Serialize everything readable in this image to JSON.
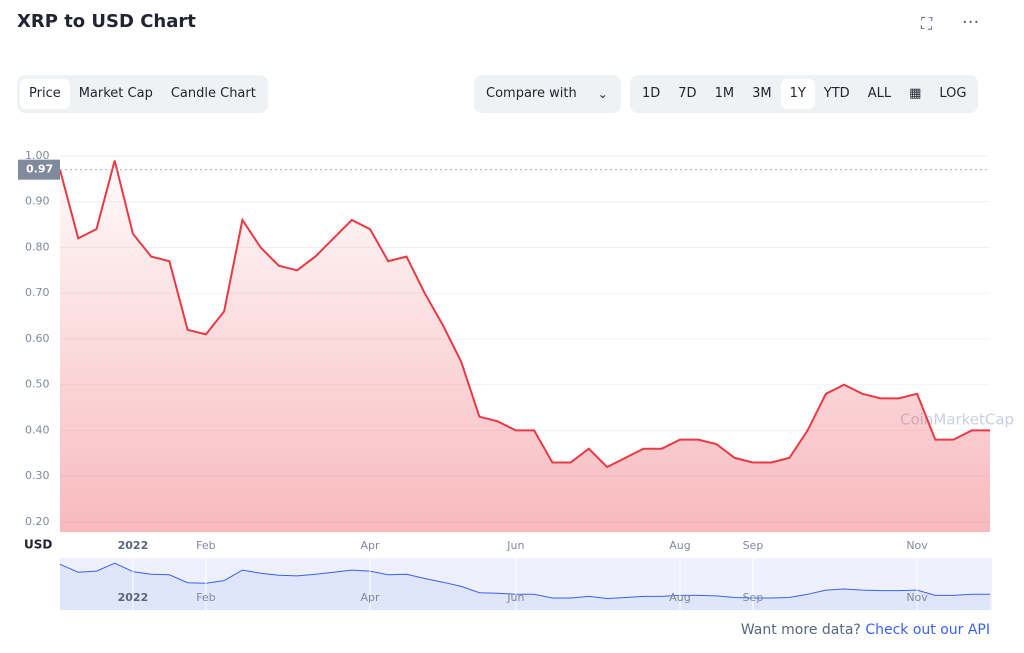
{
  "header": {
    "title": "XRP to USD Chart"
  },
  "tabs": [
    "Price",
    "Market Cap",
    "Candle Chart"
  ],
  "compare": "Compare with",
  "ranges": [
    "1D",
    "7D",
    "1M",
    "3M",
    "1Y",
    "YTD",
    "ALL"
  ],
  "log": "LOG",
  "watermark": "CoinMarketCap",
  "footer": {
    "text": "Want more data?",
    "link": "Check out our API"
  },
  "chart_data": {
    "type": "line",
    "y_unit": "USD",
    "price_marker": 0.97,
    "color": "#ea3943",
    "categories": [
      null,
      null,
      null,
      null,
      "2022",
      null,
      null,
      null,
      "Feb",
      null,
      null,
      null,
      null,
      null,
      null,
      null,
      null,
      "Apr",
      null,
      null,
      null,
      null,
      null,
      null,
      null,
      "Jun",
      null,
      null,
      null,
      null,
      null,
      null,
      null,
      null,
      "Aug",
      null,
      null,
      null,
      "Sep",
      null,
      null,
      null,
      null,
      null,
      null,
      null,
      null,
      "Nov",
      null,
      null,
      null,
      null
    ],
    "values": [
      0.97,
      0.82,
      0.84,
      0.99,
      0.83,
      0.78,
      0.77,
      0.62,
      0.61,
      0.66,
      0.86,
      0.8,
      0.76,
      0.75,
      0.78,
      0.82,
      0.86,
      0.84,
      0.77,
      0.78,
      0.7,
      0.63,
      0.55,
      0.43,
      0.42,
      0.4,
      0.4,
      0.33,
      0.33,
      0.36,
      0.32,
      0.34,
      0.36,
      0.36,
      0.38,
      0.38,
      0.37,
      0.34,
      0.33,
      0.33,
      0.34,
      0.4,
      0.48,
      0.5,
      0.48,
      0.47,
      0.47,
      0.48,
      0.38,
      0.38,
      0.4,
      0.4
    ],
    "ylim": [
      0.178,
      1.013
    ],
    "yticks": [
      {
        "value": 0.2,
        "label": "0.20"
      },
      {
        "value": 0.3,
        "label": "0.30"
      },
      {
        "value": 0.4,
        "label": "0.40"
      },
      {
        "value": 0.5,
        "label": "0.50"
      },
      {
        "value": 0.6,
        "label": "0.60"
      },
      {
        "value": 0.7,
        "label": "0.70"
      },
      {
        "value": 0.8,
        "label": "0.80"
      },
      {
        "value": 0.9,
        "label": "0.90"
      },
      {
        "value": 1.0,
        "label": "1.00"
      }
    ],
    "grid": true
  }
}
